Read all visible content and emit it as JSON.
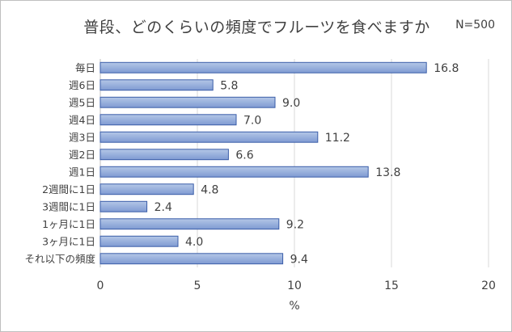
{
  "chart_data": {
    "type": "bar",
    "orientation": "horizontal",
    "title": "普段、どのくらいの頻度でフルーツを食べますか",
    "note": "N=500",
    "categories": [
      "毎日",
      "週6日",
      "週5日",
      "週4日",
      "週3日",
      "週2日",
      "週1日",
      "2週間に1日",
      "3週間に1日",
      "1ヶ月に1日",
      "3ヶ月に1日",
      "それ以下の頻度"
    ],
    "values": [
      16.8,
      5.8,
      9.0,
      7.0,
      11.2,
      6.6,
      13.8,
      4.8,
      2.4,
      9.2,
      4.0,
      9.4
    ],
    "value_labels": [
      "16.8",
      "5.8",
      "9.0",
      "7.0",
      "11.2",
      "6.6",
      "13.8",
      "4.8",
      "2.4",
      "9.2",
      "4.0",
      "9.4"
    ],
    "xlabel": "%",
    "ylabel": "",
    "xlim": [
      0,
      20
    ],
    "xticks": [
      0,
      5,
      10,
      15,
      20
    ],
    "xtick_labels": [
      "0",
      "5",
      "10",
      "15",
      "20"
    ],
    "grid": "vertical",
    "legend": "none",
    "colors": {
      "bar_fill_top": "#b4c7e7",
      "bar_fill_bottom": "#7f9ad2",
      "bar_stroke": "#3a5da8",
      "grid": "#d9d9d9",
      "text": "#404040"
    }
  }
}
